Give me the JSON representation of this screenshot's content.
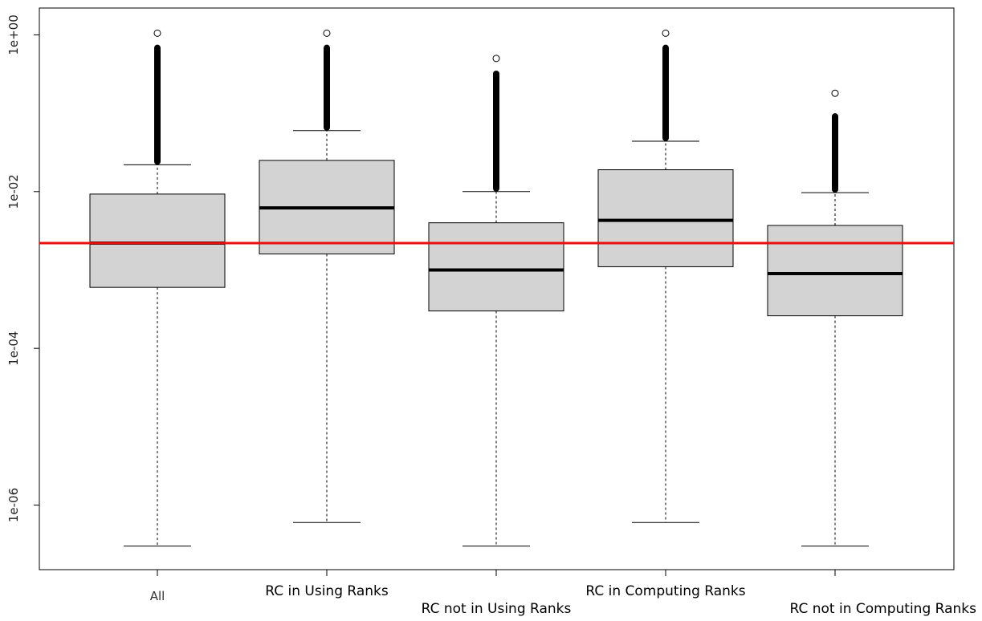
{
  "chart_data": {
    "type": "box",
    "log_y": true,
    "ylim": [
      1.5e-07,
      2.2
    ],
    "y_ticks": [
      {
        "value": 1,
        "label": "1e+00"
      },
      {
        "value": 0.01,
        "label": "1e-02"
      },
      {
        "value": 0.0001,
        "label": "1e-04"
      },
      {
        "value": 1e-06,
        "label": "1e-06"
      }
    ],
    "categories": [
      "All",
      "RC in Using Ranks",
      "RC not in Using Ranks",
      "RC in Computing Ranks",
      "RC not in Computing Ranks"
    ],
    "boxes": [
      {
        "whisker_low": 3e-07,
        "q1": 0.0006,
        "median": 0.0022,
        "q3": 0.0093,
        "whisker_high": 0.022,
        "outlier_dense_max": 0.75,
        "outlier_max": 1.05
      },
      {
        "whisker_low": 6e-07,
        "q1": 0.0016,
        "median": 0.0062,
        "q3": 0.025,
        "whisker_high": 0.06,
        "outlier_dense_max": 0.75,
        "outlier_max": 1.05
      },
      {
        "whisker_low": 3e-07,
        "q1": 0.0003,
        "median": 0.001,
        "q3": 0.004,
        "whisker_high": 0.01,
        "outlier_dense_max": 0.35,
        "outlier_max": 0.5
      },
      {
        "whisker_low": 6e-07,
        "q1": 0.0011,
        "median": 0.0043,
        "q3": 0.019,
        "whisker_high": 0.044,
        "outlier_dense_max": 0.75,
        "outlier_max": 1.05
      },
      {
        "whisker_low": 3e-07,
        "q1": 0.00026,
        "median": 0.0009,
        "q3": 0.0037,
        "whisker_high": 0.0097,
        "outlier_dense_max": 0.1,
        "outlier_max": 0.18
      }
    ],
    "reference_line": {
      "value": 0.0022,
      "color": "#e8110f"
    },
    "colors": {
      "box_fill": "#d3d3d3",
      "box_stroke": "#000000",
      "median": "#000000"
    }
  }
}
